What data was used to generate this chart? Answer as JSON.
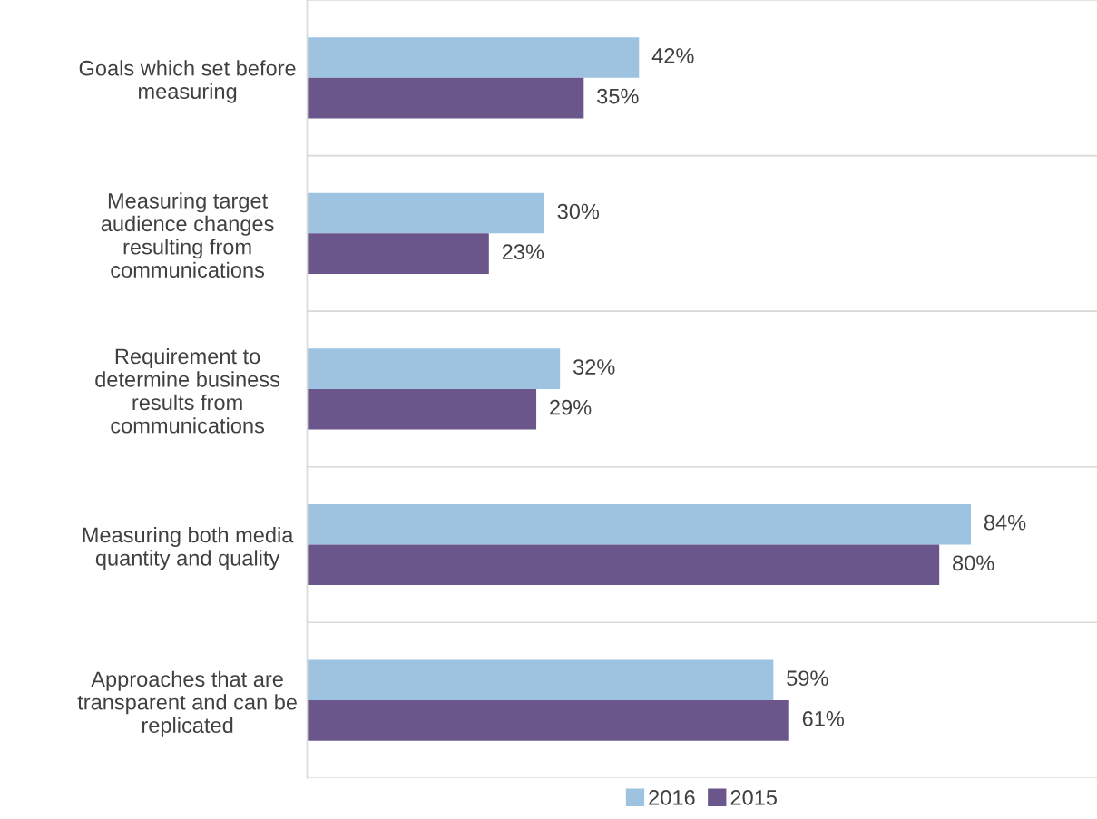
{
  "chart_data": {
    "type": "bar",
    "orientation": "horizontal",
    "categories": [
      "Goals which set before\nmeasuring",
      "Measuring target\naudience changes\nresulting from\ncommunications",
      "Requirement to\ndetermine business\nresults from\ncommunications",
      "Measuring both media\nquantity and quality",
      "Approaches that are\ntransparent and can be\nreplicated"
    ],
    "series": [
      {
        "name": "2016",
        "color": "#9dc3e0",
        "values": [
          42,
          30,
          32,
          84,
          59
        ],
        "value_labels": [
          "42%",
          "30%",
          "32%",
          "84%",
          "59%"
        ]
      },
      {
        "name": "2015",
        "color": "#6b568c",
        "values": [
          35,
          23,
          29,
          80,
          61
        ],
        "value_labels": [
          "35%",
          "23%",
          "29%",
          "80%",
          "61%"
        ]
      }
    ],
    "grid": "y",
    "legend": "bottom"
  }
}
